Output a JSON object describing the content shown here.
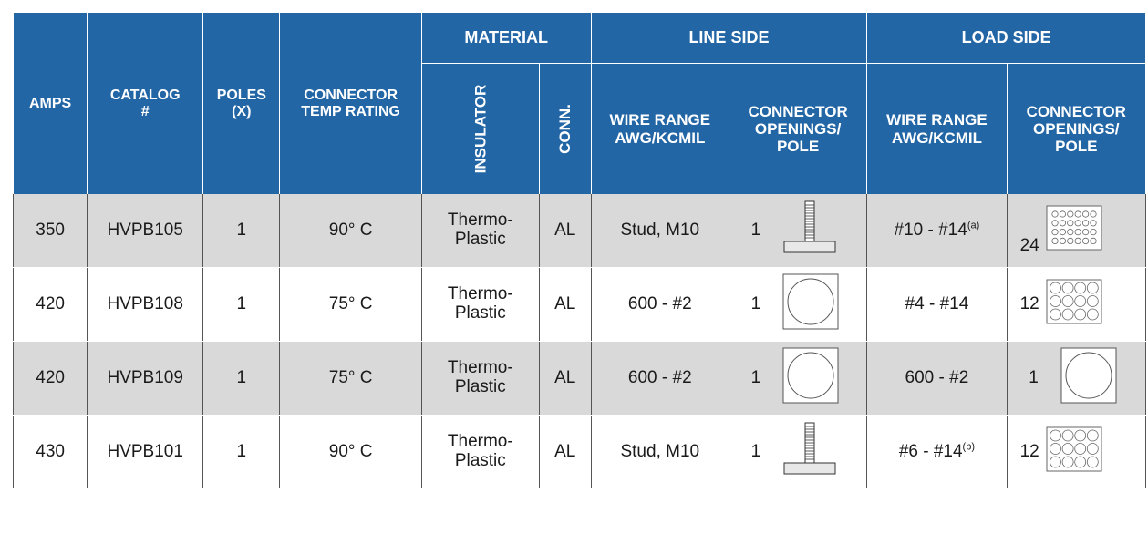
{
  "header": {
    "group_material": "MATERIAL",
    "group_line_side": "LINE SIDE",
    "group_load_side": "LOAD SIDE",
    "amps": "AMPS",
    "catalog": "CATALOG #",
    "poles": "POLES (x)",
    "connector_temp_rating": "CONNECTOR TEMP RATING",
    "insulator": "INSULATOR",
    "conn": "CONN.",
    "line_wire_range": "WIRE RANGE AWG/kcmil",
    "line_connector_openings": "CONNECTOR OPENINGS/ POLE",
    "load_wire_range": "WIRE RANGE AWG/kcmil",
    "load_connector_openings": "CONNECTOR OPENINGS/ POLE"
  },
  "rows": [
    {
      "amps": "350",
      "catalog": "HVPB105",
      "poles": "1",
      "temp": "90° C",
      "insulator_1": "Thermo-",
      "insulator_2": "Plastic",
      "conn": "AL",
      "line_wire": "Stud, M10",
      "line_openings": "1",
      "line_icon": "stud-icon",
      "load_wire": "#10 - #14",
      "load_wire_note": "(a)",
      "load_openings": "24",
      "load_icon": "multi-port-24-icon"
    },
    {
      "amps": "420",
      "catalog": "HVPB108",
      "poles": "1",
      "temp": "75° C",
      "insulator_1": "Thermo-",
      "insulator_2": "Plastic",
      "conn": "AL",
      "line_wire": "600 - #2",
      "line_openings": "1",
      "line_icon": "single-port-icon",
      "load_wire": "#4 - #14",
      "load_wire_note": "",
      "load_openings": "12",
      "load_icon": "multi-port-12-icon"
    },
    {
      "amps": "420",
      "catalog": "HVPB109",
      "poles": "1",
      "temp": "75° C",
      "insulator_1": "Thermo-",
      "insulator_2": "Plastic",
      "conn": "AL",
      "line_wire": "600 - #2",
      "line_openings": "1",
      "line_icon": "single-port-icon",
      "load_wire": "600 - #2",
      "load_wire_note": "",
      "load_openings": "1",
      "load_icon": "single-port-icon"
    },
    {
      "amps": "430",
      "catalog": "HVPB101",
      "poles": "1",
      "temp": "90° C",
      "insulator_1": "Thermo-",
      "insulator_2": "Plastic",
      "conn": "AL",
      "line_wire": "Stud, M10",
      "line_openings": "1",
      "line_icon": "stud-icon",
      "load_wire": "#6 - #14",
      "load_wire_note": "(b)",
      "load_openings": "12",
      "load_icon": "multi-port-12-icon"
    }
  ],
  "colors": {
    "header_bg": "#2366a5",
    "shade_row": "#d9d9da"
  }
}
